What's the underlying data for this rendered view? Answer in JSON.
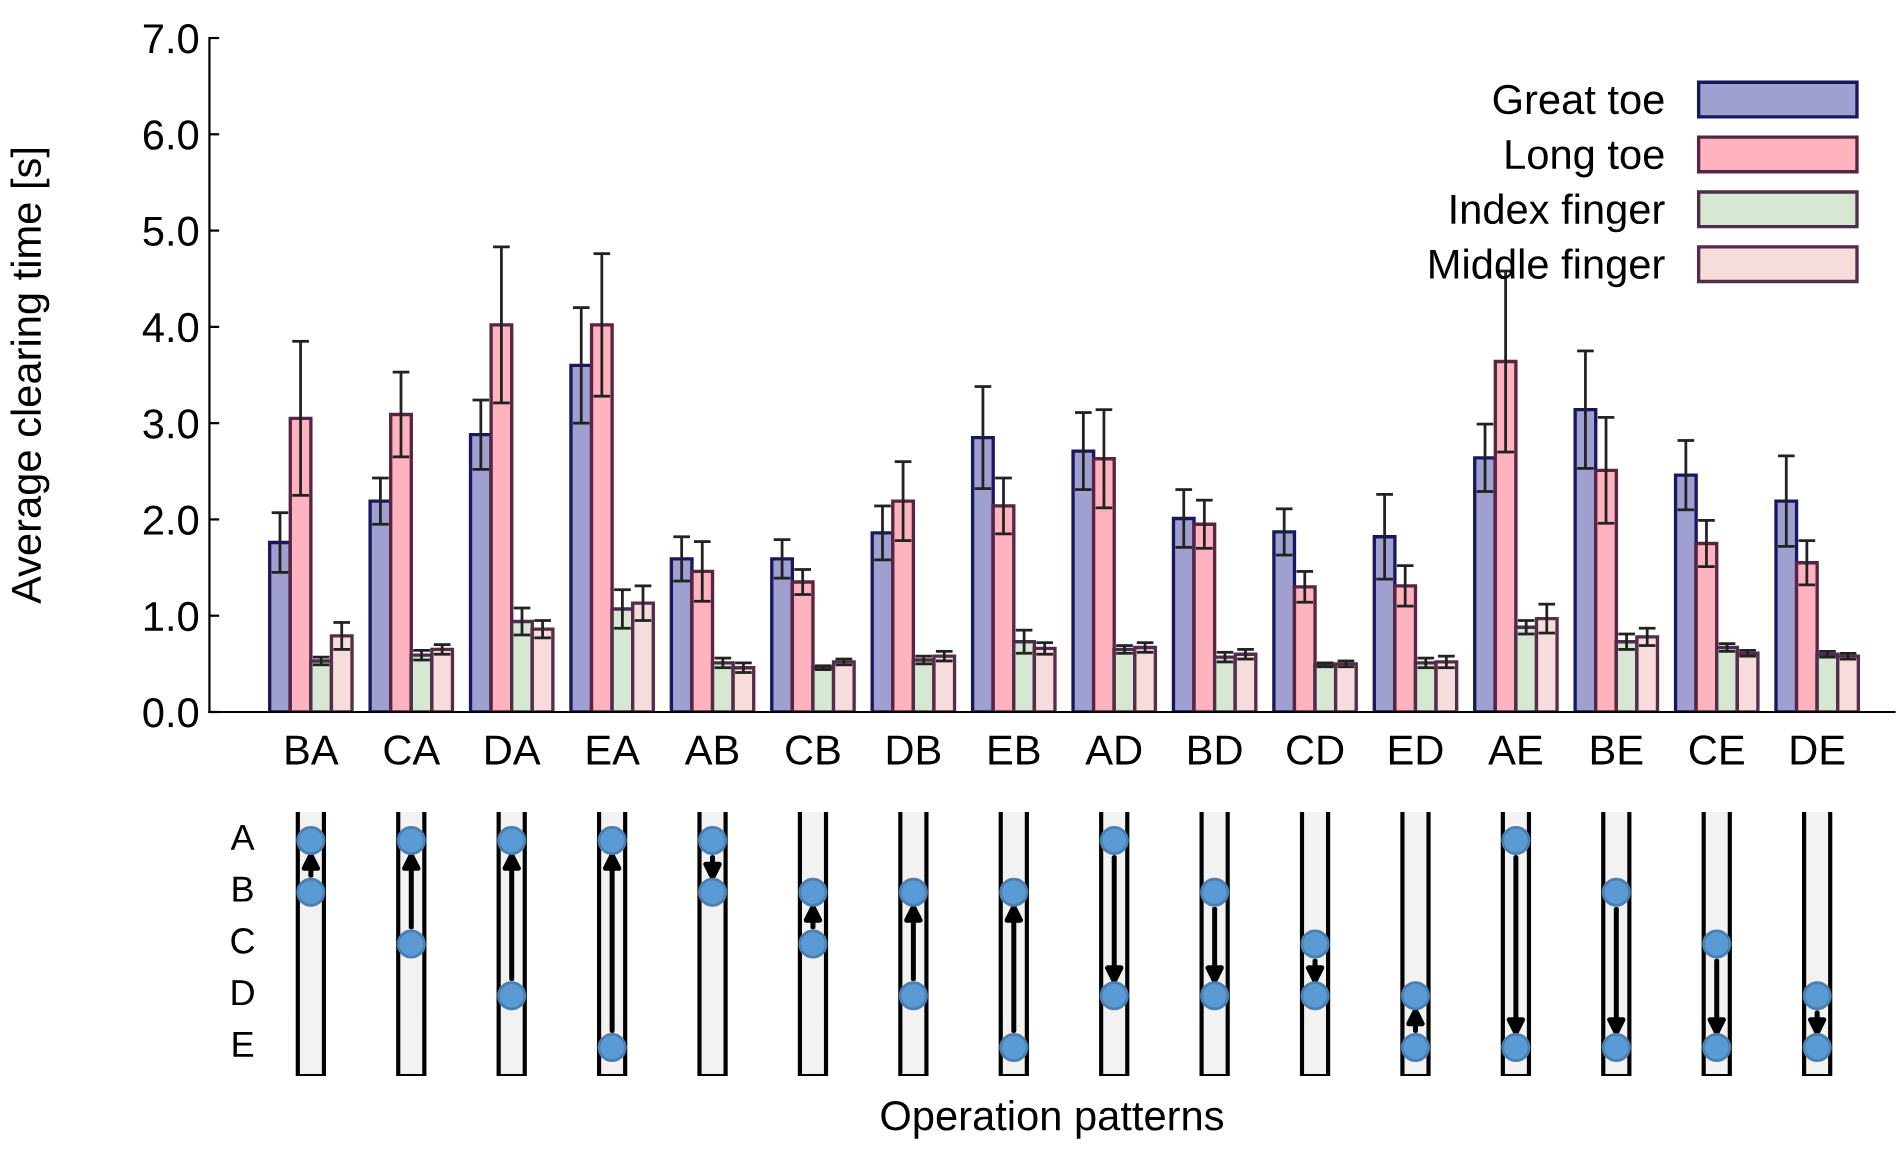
{
  "chart_data": {
    "type": "bar",
    "ylabel": "Average clearing time [s]",
    "categories": [
      "BA",
      "CA",
      "DA",
      "EA",
      "AB",
      "CB",
      "DB",
      "EB",
      "AD",
      "BD",
      "CD",
      "ED",
      "AE",
      "BE",
      "CE",
      "DE"
    ],
    "series": [
      {
        "name": "Great toe",
        "color": "#a0a0d0",
        "values": [
          1.76,
          2.19,
          2.88,
          3.6,
          1.59,
          1.59,
          1.86,
          2.85,
          2.71,
          2.01,
          1.87,
          1.82,
          2.64,
          3.14,
          2.46,
          2.19
        ],
        "errors": [
          0.31,
          0.24,
          0.36,
          0.6,
          0.23,
          0.2,
          0.28,
          0.53,
          0.4,
          0.3,
          0.24,
          0.44,
          0.35,
          0.61,
          0.36,
          0.47
        ]
      },
      {
        "name": "Long toe",
        "color": "#ffb3bf",
        "values": [
          3.05,
          3.09,
          4.02,
          4.02,
          1.46,
          1.35,
          2.19,
          2.14,
          2.63,
          1.95,
          1.3,
          1.31,
          3.64,
          2.51,
          1.75,
          1.55
        ],
        "errors": [
          0.8,
          0.44,
          0.81,
          0.74,
          0.31,
          0.13,
          0.41,
          0.29,
          0.51,
          0.25,
          0.16,
          0.21,
          0.94,
          0.55,
          0.24,
          0.23
        ]
      },
      {
        "name": "Index finger",
        "color": "#d6e8d2",
        "values": [
          0.53,
          0.59,
          0.94,
          1.07,
          0.51,
          0.46,
          0.54,
          0.73,
          0.65,
          0.57,
          0.49,
          0.51,
          0.88,
          0.73,
          0.67,
          0.6
        ],
        "errors": [
          0.04,
          0.05,
          0.14,
          0.2,
          0.05,
          0.02,
          0.04,
          0.12,
          0.04,
          0.05,
          0.02,
          0.05,
          0.07,
          0.08,
          0.04,
          0.03
        ]
      },
      {
        "name": "Middle finger",
        "color": "#f7dcdc",
        "values": [
          0.79,
          0.65,
          0.86,
          1.13,
          0.46,
          0.52,
          0.58,
          0.66,
          0.67,
          0.6,
          0.5,
          0.52,
          0.97,
          0.78,
          0.61,
          0.58
        ],
        "errors": [
          0.14,
          0.05,
          0.09,
          0.18,
          0.05,
          0.03,
          0.05,
          0.06,
          0.05,
          0.05,
          0.03,
          0.06,
          0.15,
          0.09,
          0.03,
          0.03
        ]
      }
    ],
    "ylim": [
      0,
      7
    ],
    "yticks": [
      {
        "value": 0,
        "label": "0.0"
      },
      {
        "value": 1,
        "label": "1.0"
      },
      {
        "value": 2,
        "label": "2.0"
      },
      {
        "value": 3,
        "label": "3.0"
      },
      {
        "value": 4,
        "label": "4.0"
      },
      {
        "value": 5,
        "label": "5.0"
      },
      {
        "value": 6,
        "label": "6.0"
      },
      {
        "value": 7,
        "label": "7.0"
      }
    ],
    "legend": "top right",
    "grid": false,
    "annotations": [
      "Operation patterns",
      "A",
      "B",
      "C",
      "D",
      "E"
    ]
  }
}
